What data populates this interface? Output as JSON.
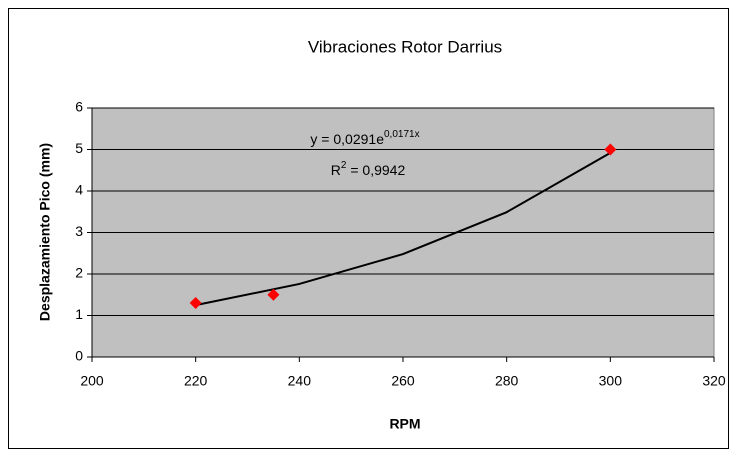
{
  "chart_data": {
    "type": "scatter",
    "title": "Vibraciones Rotor Darrius",
    "x_label": "RPM",
    "y_label": "Desplazamiento Pico (mm)",
    "x": [
      220,
      235,
      300
    ],
    "values": [
      1.3,
      1.5,
      5
    ],
    "color": "#ff0000",
    "trendline": {
      "x": [
        220,
        240,
        260,
        280,
        300
      ],
      "values": [
        1.25,
        1.76,
        2.48,
        3.49,
        4.92
      ],
      "color": "#000000"
    },
    "equation": {
      "base": "y = 0,0291e",
      "exponent": "0,0171x"
    },
    "r_squared": {
      "base": "R",
      "exponent": "2",
      "rest": " = 0,9942"
    },
    "xlim": [
      200,
      320
    ],
    "xticks": [
      200,
      220,
      240,
      260,
      280,
      300,
      320
    ],
    "ylim": [
      0,
      6
    ],
    "yticks": [
      0,
      1,
      2,
      3,
      4,
      5,
      6
    ],
    "grid": true,
    "plot_background": "#c0c0c0"
  }
}
